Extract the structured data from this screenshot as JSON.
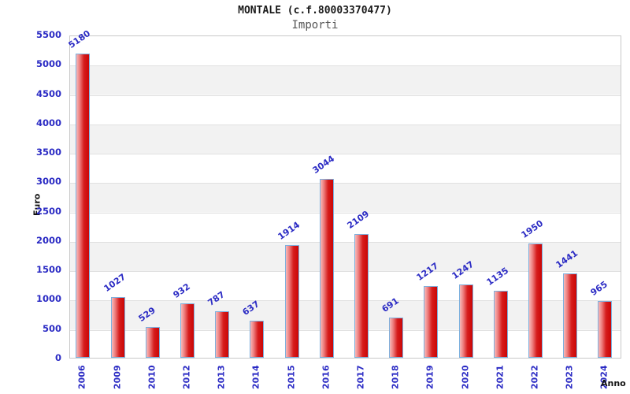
{
  "header": {
    "title": "MONTALE (c.f.80003370477)",
    "subtitle": "Importi"
  },
  "chart_data": {
    "type": "bar",
    "title": "MONTALE (c.f.80003370477)",
    "subtitle": "Importi",
    "xlabel": "Anno",
    "ylabel": "Euro",
    "categories": [
      "2006",
      "2009",
      "2010",
      "2012",
      "2013",
      "2014",
      "2015",
      "2016",
      "2017",
      "2018",
      "2019",
      "2020",
      "2021",
      "2022",
      "2023",
      "2024"
    ],
    "values": [
      5180,
      1027,
      529,
      932,
      787,
      637,
      1914,
      3044,
      2109,
      691,
      1217,
      1247,
      1135,
      1950,
      1441,
      965
    ],
    "ylim": [
      0,
      5500
    ],
    "ytick_step": 500,
    "grid": "horizontal",
    "background_stripes": true,
    "legend": "none",
    "colors": {
      "bar_fill_light": "#f7b9b9",
      "bar_fill_dark": "#cb0606",
      "bar_border": "#7db0de",
      "tick_label": "#2b2bc4",
      "stripe_gray": "#f2f2f2",
      "gridline": "#e0e0e0",
      "title_text": "#1a1a1a",
      "subtitle_text": "#555555"
    }
  }
}
